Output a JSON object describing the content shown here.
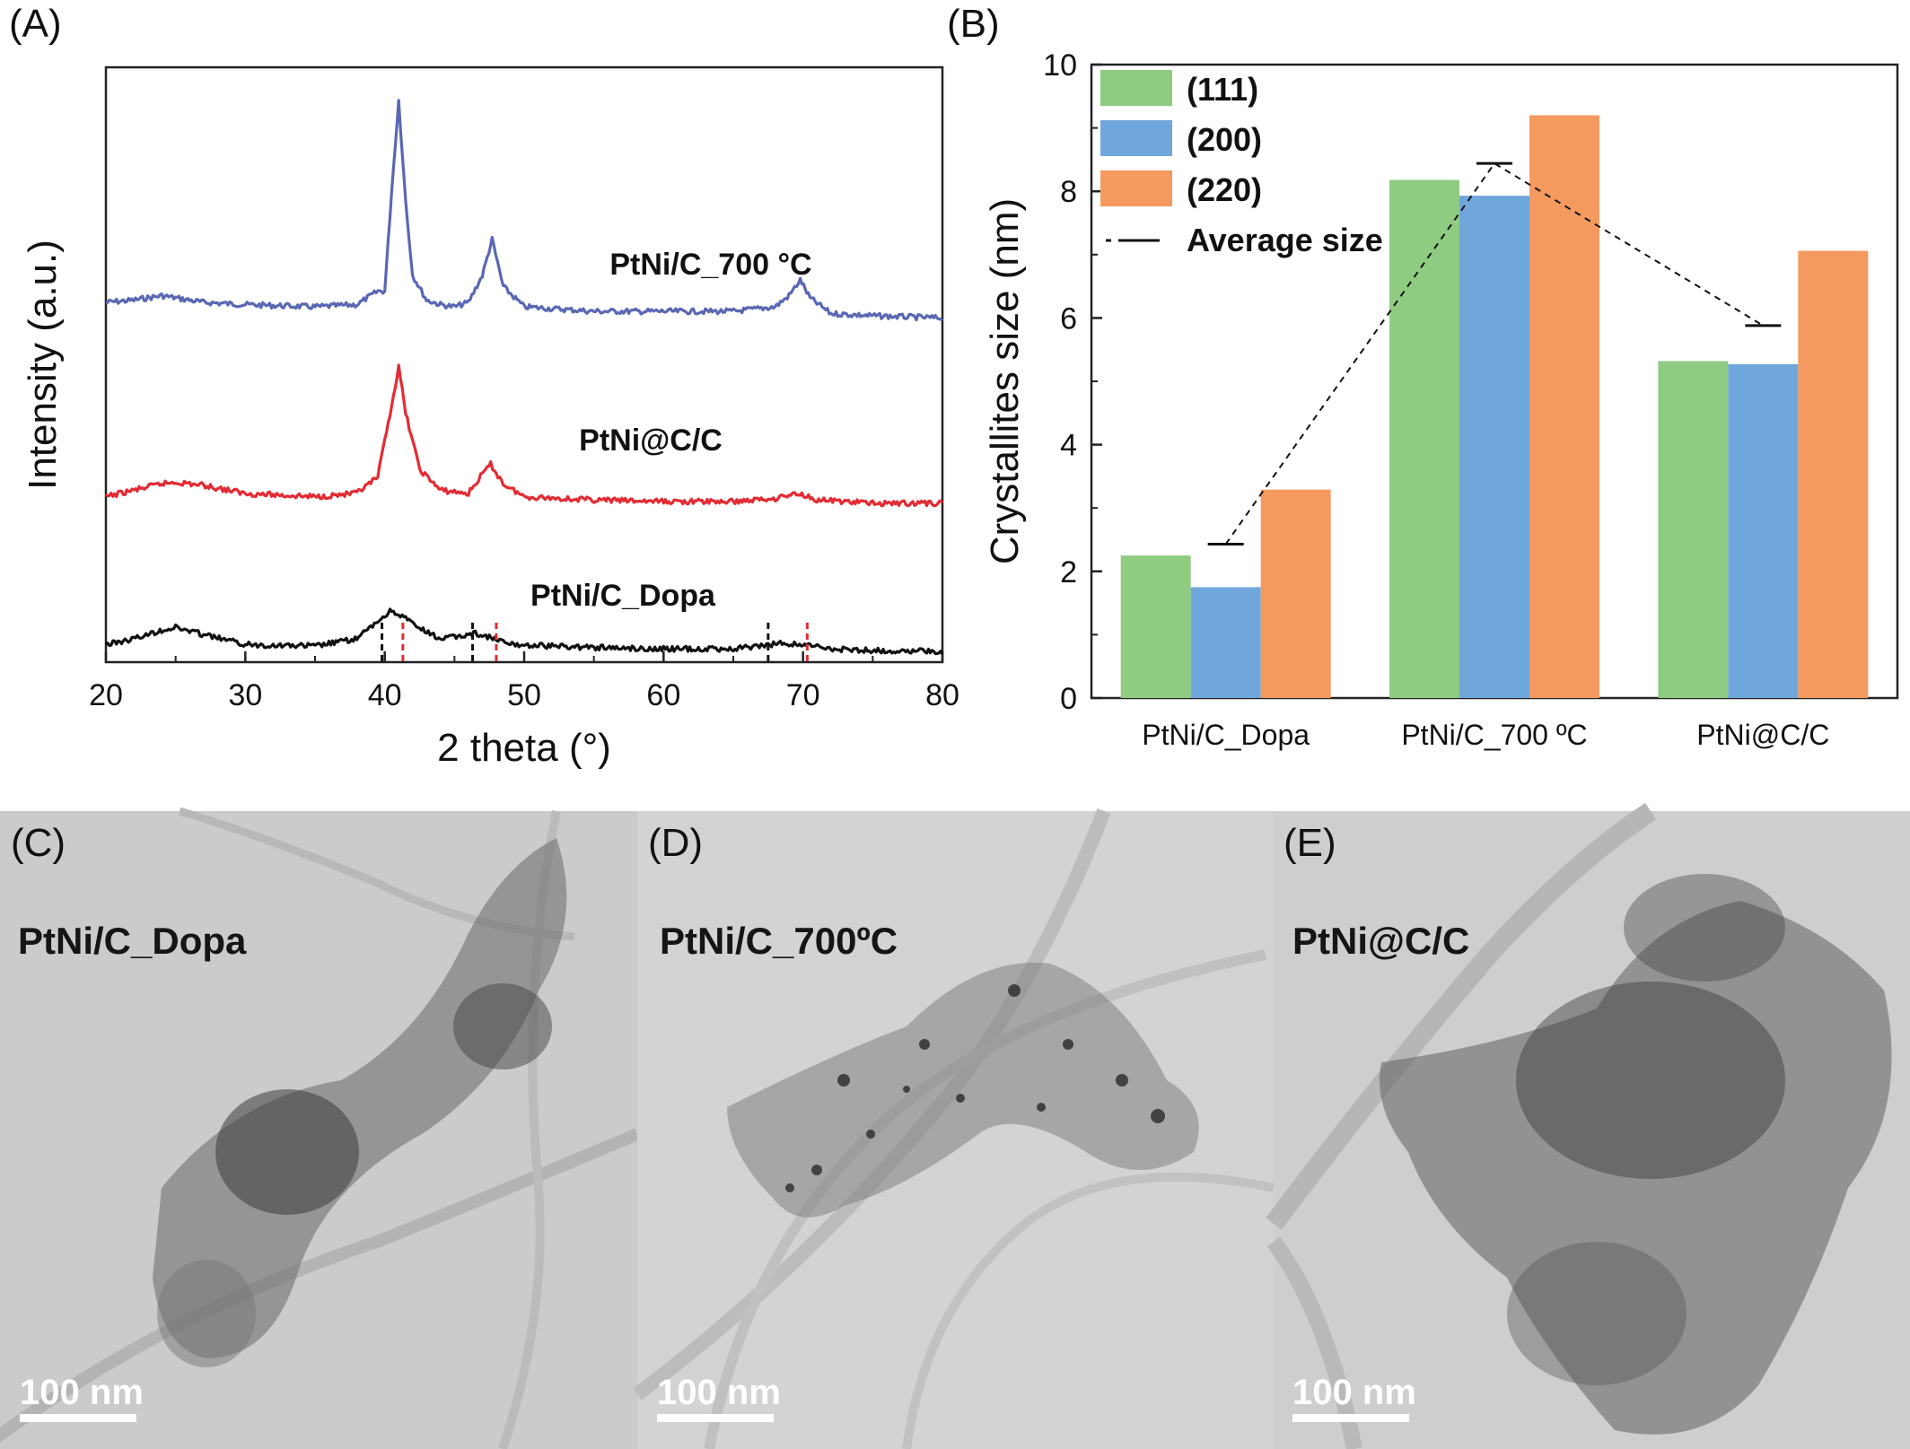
{
  "panel_a": {
    "letter": "(A)"
  },
  "panel_b": {
    "letter": "(B)"
  },
  "chart_data": [
    {
      "type": "line",
      "xlabel": "2 theta (°)",
      "ylabel": "Intensity (a.u.)",
      "xlim": [
        20,
        80
      ],
      "xticks": [
        "20",
        "30",
        "40",
        "50",
        "60",
        "70",
        "80"
      ],
      "series": [
        {
          "name": "PtNi/C_700 °C",
          "color": "#5a67b4",
          "x": [
            20,
            22,
            24,
            25,
            27,
            30,
            35,
            38,
            39.5,
            40,
            40.5,
            41,
            41.5,
            42,
            43,
            44,
            45,
            46,
            47,
            47.7,
            48.5,
            50,
            55,
            60,
            65,
            68,
            69,
            69.8,
            70.5,
            72,
            75,
            80
          ],
          "y": [
            0.1,
            0.11,
            0.13,
            0.12,
            0.1,
            0.09,
            0.08,
            0.09,
            0.15,
            0.15,
            0.6,
            1.0,
            0.55,
            0.22,
            0.11,
            0.09,
            0.08,
            0.1,
            0.22,
            0.38,
            0.17,
            0.08,
            0.06,
            0.06,
            0.06,
            0.08,
            0.13,
            0.2,
            0.12,
            0.05,
            0.04,
            0.03
          ]
        },
        {
          "name": "PtNi@C/C",
          "color": "#e32b33",
          "x": [
            20,
            22,
            24,
            25,
            27,
            30,
            35,
            38,
            39.5,
            40.5,
            41,
            41.5,
            42.5,
            44,
            46,
            47,
            47.6,
            48.5,
            50,
            55,
            60,
            65,
            68,
            69,
            69.8,
            71,
            75,
            80
          ],
          "y": [
            0.08,
            0.12,
            0.16,
            0.17,
            0.15,
            0.1,
            0.08,
            0.1,
            0.2,
            0.65,
            0.88,
            0.6,
            0.25,
            0.12,
            0.1,
            0.22,
            0.28,
            0.16,
            0.08,
            0.06,
            0.05,
            0.05,
            0.07,
            0.09,
            0.1,
            0.06,
            0.04,
            0.04
          ]
        },
        {
          "name": "PtNi/C_Dopa",
          "color": "#111111",
          "x": [
            20,
            22,
            24,
            25,
            27,
            30,
            35,
            38,
            39.5,
            40.5,
            41.5,
            42.5,
            44,
            45.5,
            46.5,
            47.5,
            49,
            52,
            55,
            60,
            65,
            67,
            68.5,
            70,
            72,
            75,
            80
          ],
          "y": [
            0.06,
            0.1,
            0.16,
            0.18,
            0.13,
            0.06,
            0.05,
            0.1,
            0.22,
            0.3,
            0.24,
            0.17,
            0.1,
            0.12,
            0.14,
            0.11,
            0.06,
            0.05,
            0.04,
            0.03,
            0.03,
            0.05,
            0.07,
            0.06,
            0.03,
            0.02,
            0.01
          ]
        }
      ],
      "labels": [
        "PtNi/C_700 °C",
        "PtNi@C/C",
        "PtNi/C_Dopa"
      ],
      "reference_lines": {
        "black": [
          39.8,
          46.3,
          67.5
        ],
        "red": [
          41.3,
          48.0,
          70.3
        ]
      }
    },
    {
      "type": "bar",
      "categories": [
        "PtNi/C_Dopa",
        "PtNi/C_700 ºC",
        "PtNi@C/C"
      ],
      "ylabel": "Crystallites size (nm)",
      "ylim": [
        0,
        10
      ],
      "yticks": [
        "0",
        "2",
        "4",
        "6",
        "8",
        "10"
      ],
      "series": [
        {
          "name": "(111)",
          "color": "#8fcc82",
          "values": [
            2.25,
            8.18,
            5.32
          ]
        },
        {
          "name": "(200)",
          "color": "#6fa7dc",
          "values": [
            1.75,
            7.93,
            5.27
          ]
        },
        {
          "name": "(220)",
          "color": "#f59a5e",
          "values": [
            3.29,
            9.2,
            7.06
          ]
        }
      ],
      "average_size": {
        "name": "Average size",
        "values": [
          2.43,
          8.44,
          5.88
        ]
      },
      "legend_position": "top-left"
    }
  ],
  "tem_panels": [
    {
      "letter": "(C)",
      "label": "PtNi/C_Dopa",
      "scalebar": "100 nm",
      "bg": "#c9c9c9"
    },
    {
      "letter": "(D)",
      "label": "PtNi/C_700ºC",
      "scalebar": "100 nm",
      "bg": "#d2d2d2"
    },
    {
      "letter": "(E)",
      "label": "PtNi@C/C",
      "scalebar": "100 nm",
      "bg": "#cdcdcd"
    }
  ]
}
